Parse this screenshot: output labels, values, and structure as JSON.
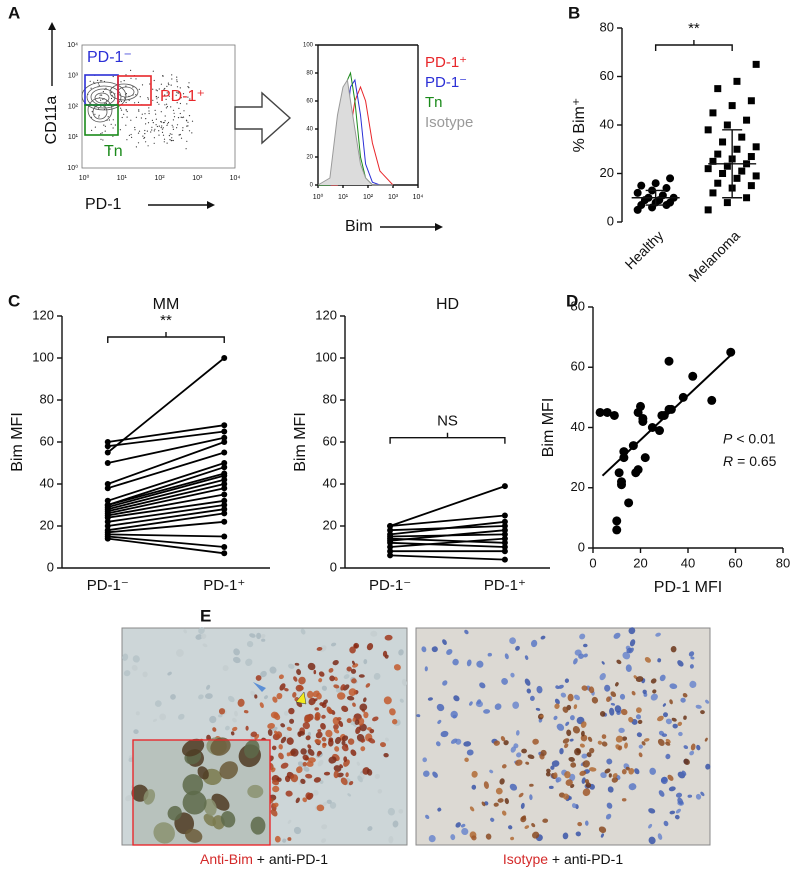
{
  "panel_labels": [
    "A",
    "B",
    "C",
    "D",
    "E"
  ],
  "panel_a": {
    "gates": {
      "pd1_neg": "PD-1⁻",
      "pd1_pos": "PD-1⁺",
      "tn": "Tn"
    },
    "y_label": "CD11a",
    "x_label": "PD-1",
    "ticks": [
      "10⁰",
      "10¹",
      "10²",
      "10³",
      "10⁴"
    ]
  },
  "chart_data": [
    {
      "type": "line",
      "x_label": "Bim",
      "xlog": true,
      "xlim": [
        1,
        10000
      ],
      "ylim": [
        0,
        100
      ],
      "xticks": [
        {
          "value": 1,
          "label": "10⁰"
        },
        {
          "value": 10,
          "label": "10¹"
        },
        {
          "value": 100,
          "label": "10²"
        },
        {
          "value": 1000,
          "label": "10³"
        },
        {
          "value": 10000,
          "label": "10⁴"
        }
      ],
      "yticks": [
        0,
        20,
        40,
        60,
        80,
        100
      ],
      "x": [
        1,
        3,
        6,
        10,
        15,
        20,
        30,
        50,
        80,
        150,
        300,
        1000
      ],
      "series": [
        {
          "name": "PD-1⁺",
          "color": "#e8262a",
          "values": [
            0,
            0,
            0,
            5,
            20,
            40,
            60,
            70,
            60,
            30,
            10,
            0
          ]
        },
        {
          "name": "PD-1⁻",
          "color": "#2b2fd6",
          "values": [
            0,
            0,
            2,
            15,
            50,
            70,
            75,
            50,
            15,
            2,
            0,
            0
          ]
        },
        {
          "name": "Tn",
          "color": "#1a8a1a",
          "values": [
            0,
            0,
            5,
            30,
            75,
            80,
            60,
            20,
            5,
            0,
            0,
            0
          ]
        },
        {
          "name": "Isotype",
          "color": "#9a9a9a",
          "fill": true,
          "values": [
            0,
            5,
            50,
            70,
            75,
            60,
            40,
            15,
            5,
            0,
            0,
            0
          ]
        }
      ]
    },
    {
      "type": "dot",
      "y_label": "% Bim⁺",
      "annotation": "**",
      "categories": [
        "Healthy",
        "Melanoma"
      ],
      "groups": [
        [
          5,
          6,
          7,
          7,
          8,
          8,
          9,
          9,
          10,
          10,
          11,
          12,
          13,
          14,
          15,
          16,
          18
        ],
        [
          5,
          8,
          10,
          12,
          14,
          15,
          16,
          18,
          19,
          20,
          21,
          22,
          23,
          24,
          25,
          26,
          27,
          28,
          30,
          31,
          33,
          35,
          38,
          40,
          42,
          45,
          48,
          50,
          55,
          58,
          65
        ]
      ],
      "means": [
        10,
        24
      ],
      "sds": [
        3,
        14
      ],
      "ylim": [
        0,
        80
      ],
      "yticks": [
        0,
        20,
        40,
        60,
        80
      ],
      "color": "#000000"
    },
    {
      "type": "paired",
      "title": "MM",
      "y_label": "Bim MFI",
      "annotation": "**",
      "categories": [
        "PD-1⁻",
        "PD-1⁺"
      ],
      "pairs": [
        [
          60,
          68
        ],
        [
          58,
          65
        ],
        [
          55,
          100
        ],
        [
          50,
          62
        ],
        [
          40,
          60
        ],
        [
          38,
          55
        ],
        [
          32,
          50
        ],
        [
          30,
          48
        ],
        [
          30,
          45
        ],
        [
          29,
          44
        ],
        [
          28,
          42
        ],
        [
          27,
          40
        ],
        [
          26,
          38
        ],
        [
          25,
          35
        ],
        [
          24,
          32
        ],
        [
          22,
          30
        ],
        [
          20,
          28
        ],
        [
          18,
          26
        ],
        [
          17,
          22
        ],
        [
          16,
          15
        ],
        [
          15,
          10
        ],
        [
          14,
          7
        ]
      ],
      "ylim": [
        0,
        120
      ],
      "yticks": [
        0,
        20,
        40,
        60,
        80,
        100,
        120
      ],
      "color": "#000000"
    },
    {
      "type": "paired",
      "title": "HD",
      "y_label": "Bim MFI",
      "annotation": "NS",
      "categories": [
        "PD-1⁻",
        "PD-1⁺"
      ],
      "pairs": [
        [
          20,
          39
        ],
        [
          20,
          25
        ],
        [
          18,
          20
        ],
        [
          16,
          22
        ],
        [
          15,
          16
        ],
        [
          14,
          12
        ],
        [
          13,
          18
        ],
        [
          12,
          10
        ],
        [
          10,
          14
        ],
        [
          8,
          8
        ],
        [
          6,
          4
        ]
      ],
      "ylim": [
        0,
        120
      ],
      "yticks": [
        0,
        20,
        40,
        60,
        80,
        100,
        120
      ],
      "color": "#000000"
    },
    {
      "type": "scatter",
      "x_label": "PD-1 MFI",
      "y_label": "Bim MFI",
      "x": [
        3,
        6,
        9,
        10,
        10,
        11,
        12,
        12,
        13,
        13,
        15,
        17,
        18,
        19,
        19,
        20,
        21,
        21,
        22,
        25,
        28,
        29,
        30,
        32,
        32,
        33,
        38,
        42,
        50,
        58
      ],
      "y": [
        45,
        45,
        44,
        9,
        6,
        25,
        22,
        21,
        32,
        30,
        15,
        34,
        25,
        45,
        26,
        47,
        43,
        42,
        30,
        40,
        39,
        44,
        44,
        62,
        46,
        46,
        50,
        57,
        49,
        65
      ],
      "fit": {
        "x": [
          4,
          58
        ],
        "y": [
          24,
          64
        ]
      },
      "xlim": [
        0,
        80
      ],
      "ylim": [
        0,
        80
      ],
      "xticks": [
        0,
        20,
        40,
        60,
        80
      ],
      "yticks": [
        0,
        20,
        40,
        60,
        80
      ],
      "color": "#000000",
      "stats": {
        "p_symbol": "P",
        "p_text": "< 0.01",
        "r_symbol": "R",
        "r_text": "= 0.65"
      }
    }
  ],
  "panel_e": {
    "left": {
      "stain": "Anti-Bim",
      "rest": "+ anti-PD-1"
    },
    "right": {
      "stain": "Isotype",
      "rest": "+ anti-PD-1"
    }
  }
}
